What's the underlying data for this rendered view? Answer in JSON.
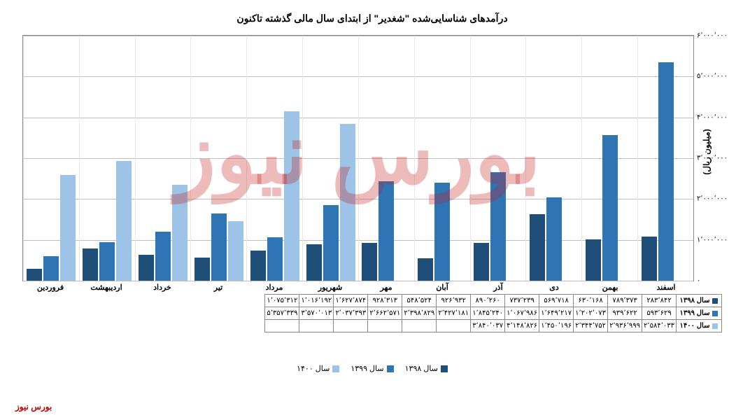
{
  "chart": {
    "title": "درآمدهای شناسایی‌شده \"شغدیر\" از ابتدای سال مالی گذشته تاکنون",
    "y_axis_label": "(میلیون ریال)",
    "ylim": [
      0,
      6000000
    ],
    "ytick_step": 1000000,
    "grid_color": "#c0c0c0",
    "background_color": "#ffffff",
    "series": [
      {
        "name": "سال ۱۳۹۸",
        "color": "#1f4e79"
      },
      {
        "name": "سال ۱۳۹۹",
        "color": "#2e75b6"
      },
      {
        "name": "سال ۱۴۰۰",
        "color": "#9dc3e6"
      }
    ],
    "months": [
      "فروردین",
      "اردیبهشت",
      "خرداد",
      "تیر",
      "مرداد",
      "شهریور",
      "مهر",
      "آبان",
      "آذر",
      "دی",
      "بهمن",
      "اسفند"
    ],
    "data": {
      "y1398": [
        283842,
        789373,
        630168,
        569718,
        737239,
        890260,
        926932,
        548524,
        928313,
        1627874,
        1016192,
        1075312
      ],
      "y1399": [
        593629,
        939622,
        1202073,
        1649217,
        1067986,
        1845240,
        2427181,
        2398829,
        2662571,
        2037393,
        3570013,
        5357339
      ],
      "y1400": [
        2584033,
        2936999,
        2344752,
        1450196,
        4148826,
        3840037,
        null,
        null,
        null,
        null,
        null,
        null
      ]
    },
    "yticks_labels": [
      "۰",
      "۱٬۰۰۰٬۰۰۰",
      "۲٬۰۰۰٬۰۰۰",
      "۳٬۰۰۰٬۰۰۰",
      "۴٬۰۰۰٬۰۰۰",
      "۵٬۰۰۰٬۰۰۰",
      "۶٬۰۰۰٬۰۰۰"
    ],
    "table_labels": {
      "y1398": [
        "۲۸۳٬۸۴۲",
        "۷۸۹٬۳۷۳",
        "۶۳۰٬۱۶۸",
        "۵۶۹٬۷۱۸",
        "۷۳۷٬۲۳۹",
        "۸۹۰٬۲۶۰",
        "۹۲۶٬۹۳۲",
        "۵۴۸٬۵۲۴",
        "۹۲۸٬۳۱۳",
        "۱٬۶۲۷٬۸۷۴",
        "۱٬۰۱۶٬۱۹۲",
        "۱٬۰۷۵٬۳۱۲"
      ],
      "y1399": [
        "۵۹۳٬۶۲۹",
        "۹۳۹٬۶۲۲",
        "۱٬۲۰۲٬۰۷۳",
        "۱٬۶۴۹٬۲۱۷",
        "۱٬۰۶۷٬۹۸۶",
        "۱٬۸۴۵٬۲۴۰",
        "۲٬۴۲۷٬۱۸۱",
        "۲٬۳۹۸٬۸۲۹",
        "۲٬۶۶۲٬۵۷۱",
        "۲٬۰۳۷٬۳۹۳",
        "۳٬۵۷۰٬۰۱۳",
        "۵٬۳۵۷٬۳۳۹"
      ],
      "y1400": [
        "۲٬۵۸۴٬۰۳۳",
        "۲٬۹۳۶٬۹۹۹",
        "۲٬۳۴۴٬۷۵۲",
        "۱٬۴۵۰٬۱۹۶",
        "۴٬۱۴۸٬۸۲۶",
        "۳٬۸۴۰٬۰۳۷",
        "",
        "",
        "",
        "",
        "",
        ""
      ]
    },
    "watermark_text": "بورس نیوز",
    "footer_brand": "بورس نیوز"
  }
}
